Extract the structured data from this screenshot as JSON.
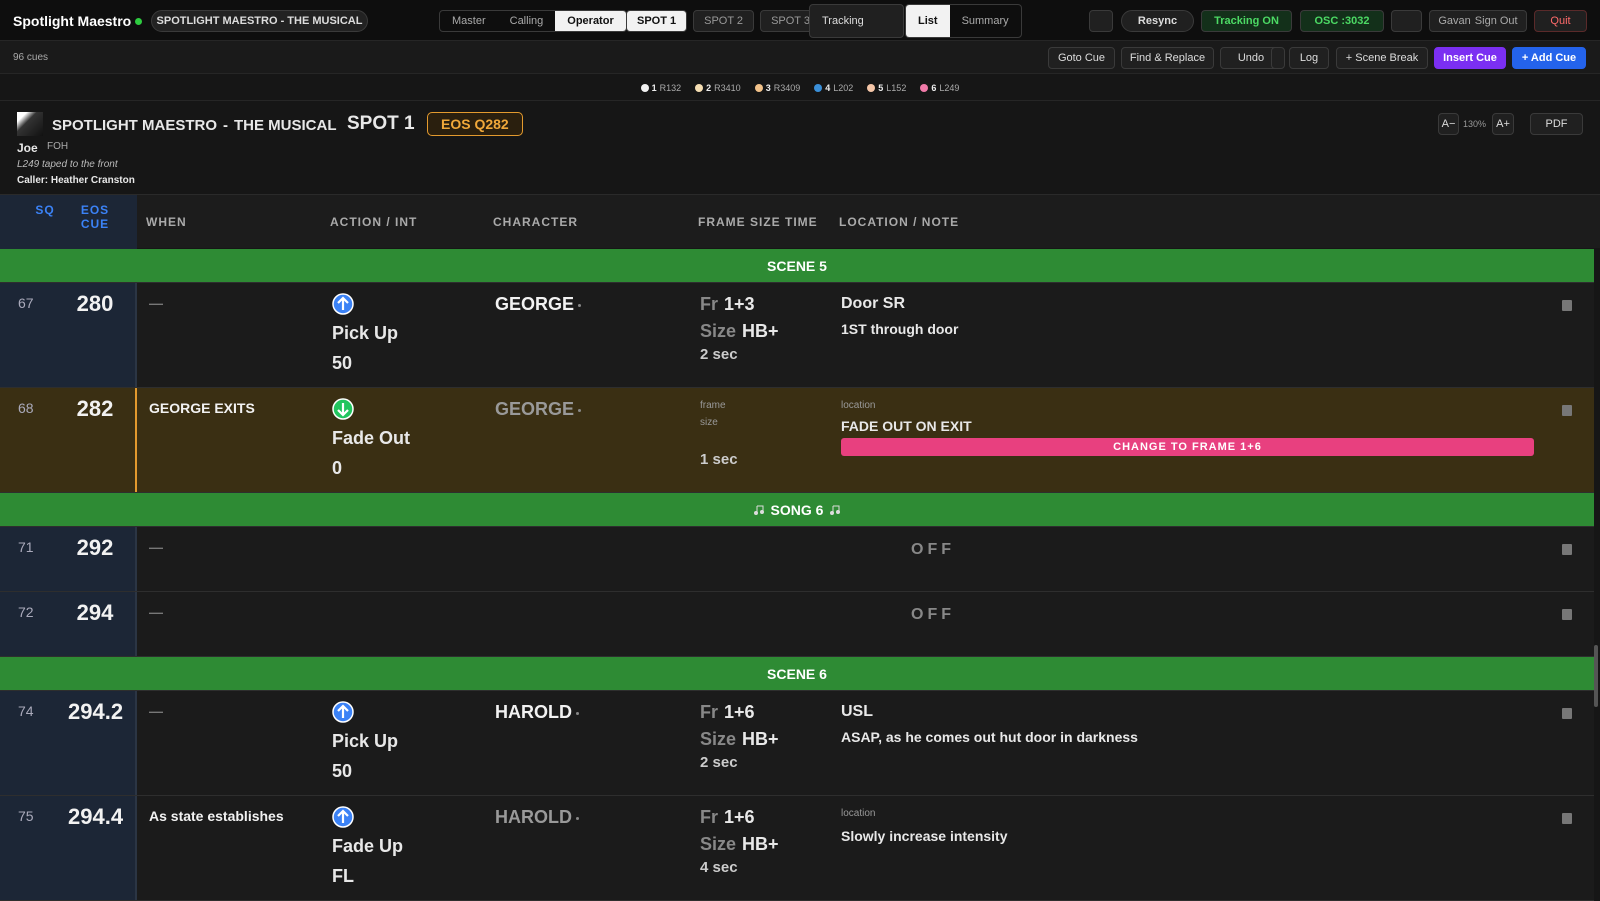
{
  "topbar": {
    "app": "Spotlight Maestro",
    "show": "SPOTLIGHT MAESTRO - THE MUSICAL",
    "views": [
      "Master",
      "Calling",
      "Operator"
    ],
    "active_view": 2,
    "spots": [
      "SPOT 1",
      "SPOT 2",
      "SPOT 3"
    ],
    "active_spot": 0,
    "mode": "Tracking",
    "layouts": [
      "List",
      "Summary"
    ],
    "active_layout": 0,
    "resync": "Resync",
    "tracking": "Tracking ON",
    "osc": "OSC :3032",
    "user": "Gavan",
    "sign_out": "Sign Out",
    "quit": "Quit"
  },
  "toolbar": {
    "count": "96 cues",
    "buttons": [
      "Goto Cue",
      "Find & Replace",
      "Undo"
    ],
    "log": "Log",
    "scene_break": "+ Scene Break",
    "insert": "Insert Cue",
    "add": "+ Add Cue"
  },
  "spot_legend": [
    {
      "num": "1",
      "gel": "R132",
      "color": "#f2f2f2"
    },
    {
      "num": "2",
      "gel": "R3410",
      "color": "#f5deb3"
    },
    {
      "num": "3",
      "gel": "R3409",
      "color": "#f2c28a"
    },
    {
      "num": "4",
      "gel": "L202",
      "color": "#3a8fd8"
    },
    {
      "num": "5",
      "gel": "L152",
      "color": "#f5c6a8"
    },
    {
      "num": "6",
      "gel": "L249",
      "color": "#f07aa8"
    }
  ],
  "header": {
    "show": "SPOTLIGHT MAESTRO",
    "subtitle": "THE MUSICAL",
    "spot": "SPOT 1",
    "eos": "EOS Q282",
    "operator": "Joe",
    "position": "FOH",
    "note": "L249 taped to the front",
    "caller": "Caller: Heather Cranston",
    "zoom_out": "A−",
    "zoom": "130%",
    "zoom_in": "A+",
    "pdf": "PDF"
  },
  "table": {
    "columns": [
      "SQ",
      "EOS CUE",
      "WHEN",
      "ACTION / INT",
      "CHARACTER",
      "FRAME SIZE TIME",
      "LOCATION / NOTE"
    ],
    "rows": [
      {
        "kind": "scene",
        "label": "SCENE 5"
      },
      {
        "kind": "cue",
        "sq": 67,
        "cue": 280,
        "when": "—",
        "dir": "up",
        "action": "Pick Up",
        "int": "50",
        "character": "GEORGE",
        "fr_label": "Fr",
        "frame": "1+3",
        "size_label": "Size",
        "size": "HB+",
        "time": "2 sec",
        "location": "Door SR",
        "note": "1ST through door"
      },
      {
        "kind": "cue",
        "sq": 68,
        "cue": 282,
        "highlight": true,
        "when": "GEORGE EXITS",
        "dir": "down",
        "action": "Fade Out",
        "int": "0",
        "character": "GEORGE",
        "dim": true,
        "frame_label": "frame",
        "size_small": "size",
        "time": "1 sec",
        "location_label": "location",
        "note_caps": "FADE OUT ON EXIT",
        "banner": "CHANGE TO FRAME 1+6"
      },
      {
        "kind": "song",
        "label": "SONG 6"
      },
      {
        "kind": "off",
        "sq": 71,
        "cue": 292,
        "when": "—",
        "off": "OFF"
      },
      {
        "kind": "off",
        "sq": 72,
        "cue": 294,
        "when": "—",
        "off": "OFF"
      },
      {
        "kind": "scene",
        "label": "SCENE 6"
      },
      {
        "kind": "cue",
        "sq": 74,
        "cue": 294.2,
        "when": "—",
        "dir": "up",
        "action": "Pick Up",
        "int": "50",
        "character": "HAROLD",
        "fr_label": "Fr",
        "frame": "1+6",
        "size_label": "Size",
        "size": "HB+",
        "time": "2 sec",
        "location": "USL",
        "note": "ASAP, as he comes out hut door in darkness"
      },
      {
        "kind": "cue",
        "sq": 75,
        "cue": 294.4,
        "when": "As state establishes",
        "dir": "up",
        "action": "Fade Up",
        "int": "FL",
        "character": "HAROLD",
        "dim": true,
        "fr_label": "Fr",
        "frame": "1+6",
        "size_label": "Size",
        "size": "HB+",
        "time": "4 sec",
        "location_label": "location",
        "note": "Slowly increase intensity"
      }
    ]
  }
}
